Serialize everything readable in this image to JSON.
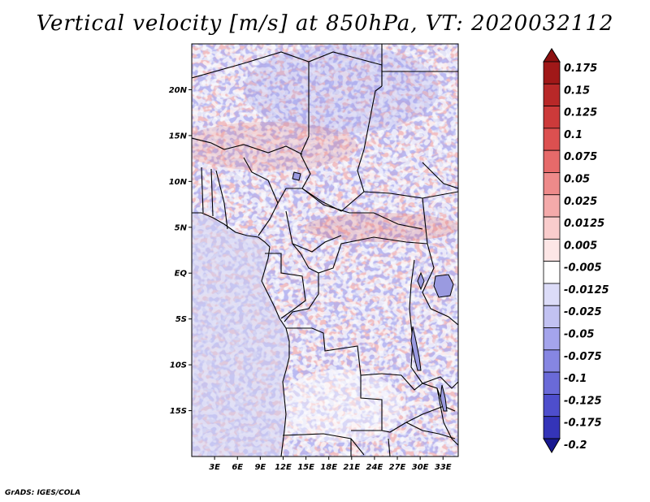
{
  "title": "Vertical velocity [m/s] at 850hPa, VT: 2020032112",
  "credit": "GrADS: IGES/COLA",
  "map": {
    "region": "Central Africa",
    "lon_range_deg": [
      0,
      35
    ],
    "lat_range_deg": [
      -20,
      25
    ],
    "lat_ticks": [
      {
        "value": 20,
        "label": "20N"
      },
      {
        "value": 15,
        "label": "15N"
      },
      {
        "value": 10,
        "label": "10N"
      },
      {
        "value": 5,
        "label": "5N"
      },
      {
        "value": 0,
        "label": "EQ"
      },
      {
        "value": -5,
        "label": "5S"
      },
      {
        "value": -10,
        "label": "10S"
      },
      {
        "value": -15,
        "label": "15S"
      }
    ],
    "lon_ticks": [
      {
        "value": 3,
        "label": "3E"
      },
      {
        "value": 6,
        "label": "6E"
      },
      {
        "value": 9,
        "label": "9E"
      },
      {
        "value": 12,
        "label": "12E"
      },
      {
        "value": 15,
        "label": "15E"
      },
      {
        "value": 18,
        "label": "18E"
      },
      {
        "value": 21,
        "label": "21E"
      },
      {
        "value": 24,
        "label": "24E"
      },
      {
        "value": 27,
        "label": "27E"
      },
      {
        "value": 30,
        "label": "30E"
      },
      {
        "value": 33,
        "label": "33E"
      }
    ]
  },
  "colorbar": {
    "levels": [
      {
        "label": "0.175",
        "color": "#a01818"
      },
      {
        "label": "0.15",
        "color": "#b82828"
      },
      {
        "label": "0.125",
        "color": "#cc3a3a"
      },
      {
        "label": "0.1",
        "color": "#dc5050"
      },
      {
        "label": "0.075",
        "color": "#e66a6a"
      },
      {
        "label": "0.05",
        "color": "#ee8a8a"
      },
      {
        "label": "0.025",
        "color": "#f4aaaa"
      },
      {
        "label": "0.0125",
        "color": "#f9cccc"
      },
      {
        "label": "0.005",
        "color": "#fde6e6"
      },
      {
        "label": "-0.005",
        "color": "#ffffff"
      },
      {
        "label": "-0.0125",
        "color": "#dcdcf8"
      },
      {
        "label": "-0.025",
        "color": "#c2c2f2"
      },
      {
        "label": "-0.05",
        "color": "#a4a4ec"
      },
      {
        "label": "-0.075",
        "color": "#8686e2"
      },
      {
        "label": "-0.1",
        "color": "#6a6ad8"
      },
      {
        "label": "-0.125",
        "color": "#4e4ecc"
      },
      {
        "label": "-0.175",
        "color": "#3434b8"
      },
      {
        "label": "-0.2",
        "color": "#2222a0"
      }
    ],
    "top_arrow_color": "#8c1010",
    "bottom_arrow_color": "#181890"
  },
  "field_colors": {
    "background": "#e4e4f6",
    "ocean_tint": "#d6d6f2",
    "red_strong": "#e88c8c",
    "red_weak": "#f6c6c6",
    "blue_strong": "#8a8ae4",
    "blue_weak": "#b8b8ee",
    "white": "#ffffff"
  }
}
